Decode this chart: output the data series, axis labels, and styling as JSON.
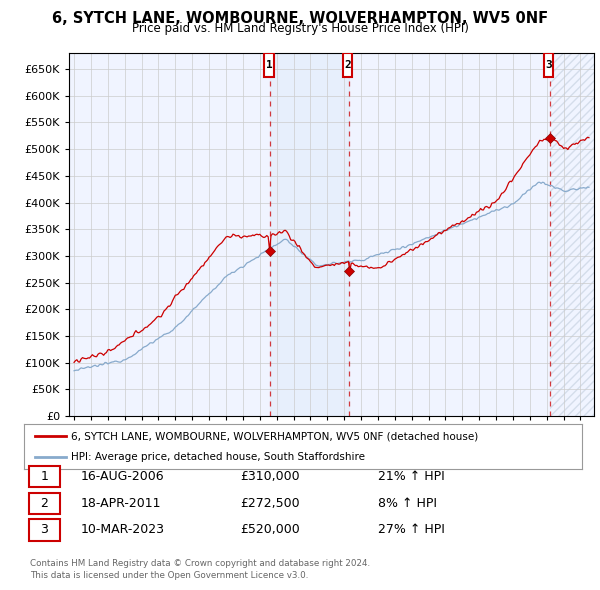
{
  "title": "6, SYTCH LANE, WOMBOURNE, WOLVERHAMPTON, WV5 0NF",
  "subtitle": "Price paid vs. HM Land Registry's House Price Index (HPI)",
  "ylim": [
    0,
    680000
  ],
  "yticks": [
    0,
    50000,
    100000,
    150000,
    200000,
    250000,
    300000,
    350000,
    400000,
    450000,
    500000,
    550000,
    600000,
    650000
  ],
  "xlim_start": 1994.7,
  "xlim_end": 2025.8,
  "sale1_year": 2006.625,
  "sale1_price": 310000,
  "sale1_label": "1",
  "sale1_date": "16-AUG-2006",
  "sale1_price_str": "£310,000",
  "sale1_hpi_pct": "21% ↑ HPI",
  "sale2_year": 2011.292,
  "sale2_price": 272500,
  "sale2_label": "2",
  "sale2_date": "18-APR-2011",
  "sale2_price_str": "£272,500",
  "sale2_hpi_pct": "8% ↑ HPI",
  "sale3_year": 2023.19,
  "sale3_price": 520000,
  "sale3_label": "3",
  "sale3_date": "10-MAR-2023",
  "sale3_price_str": "£520,000",
  "sale3_hpi_pct": "27% ↑ HPI",
  "red_color": "#cc0000",
  "blue_color": "#88aacc",
  "bg_color": "#f0f4ff",
  "grid_color": "#cccccc",
  "legend_label_red": "6, SYTCH LANE, WOMBOURNE, WOLVERHAMPTON, WV5 0NF (detached house)",
  "legend_label_blue": "HPI: Average price, detached house, South Staffordshire",
  "footer1": "Contains HM Land Registry data © Crown copyright and database right 2024.",
  "footer2": "This data is licensed under the Open Government Licence v3.0."
}
